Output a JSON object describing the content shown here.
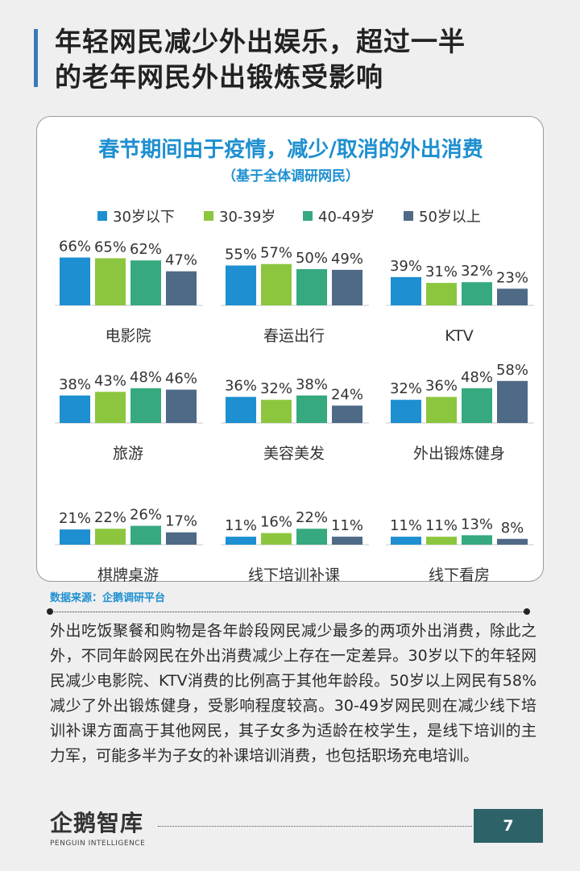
{
  "header": {
    "title_line1": "年轻网民减少外出娱乐，超过一半",
    "title_line2": "的老年网民外出锻炼受影响",
    "accent_color": "#3a78b8"
  },
  "chart_data": {
    "type": "bar",
    "title": "春节期间由于疫情，减少/取消的外出消费",
    "subtitle": "（基于全体调研网民）",
    "legend": [
      "30岁以下",
      "30-39岁",
      "40-49岁",
      "50岁以上"
    ],
    "colors": [
      "#1e8fd0",
      "#8cc63f",
      "#37a97f",
      "#4e6a86"
    ],
    "unit": "%",
    "ylim": [
      0,
      100
    ],
    "grid": false,
    "legend_position": "top",
    "panels": [
      {
        "category": "电影院",
        "values": [
          66,
          65,
          62,
          47
        ]
      },
      {
        "category": "春运出行",
        "values": [
          55,
          57,
          50,
          49
        ]
      },
      {
        "category": "KTV",
        "values": [
          39,
          31,
          32,
          23
        ]
      },
      {
        "category": "旅游",
        "values": [
          38,
          43,
          48,
          46
        ]
      },
      {
        "category": "美容美发",
        "values": [
          36,
          32,
          38,
          24
        ]
      },
      {
        "category": "外出锻炼健身",
        "values": [
          32,
          36,
          48,
          58
        ]
      },
      {
        "category": "棋牌桌游",
        "values": [
          21,
          22,
          26,
          17
        ]
      },
      {
        "category": "线下培训补课",
        "values": [
          11,
          16,
          22,
          11
        ]
      },
      {
        "category": "线下看房",
        "values": [
          11,
          11,
          13,
          8
        ]
      }
    ]
  },
  "source": "数据来源：企鹅调研平台",
  "body_text": "外出吃饭聚餐和购物是各年龄段网民减少最多的两项外出消费，除此之外，不同年龄网民在外出消费减少上存在一定差异。30岁以下的年轻网民减少电影院、KTV消费的比例高于其他年龄段。50岁以上网民有58%减少了外出锻炼健身，受影响程度较高。30-49岁网民则在减少线下培训补课方面高于其他网民，其子女多为适龄在校学生，是线下培训的主力军，可能多半为子女的补课培训消费，也包括职场充电培训。",
  "footer": {
    "logo_cn": "企鹅智库",
    "logo_en": "PENGUIN INTELLIGENCE",
    "page_number": "7",
    "page_box_color": "#2d6269"
  }
}
